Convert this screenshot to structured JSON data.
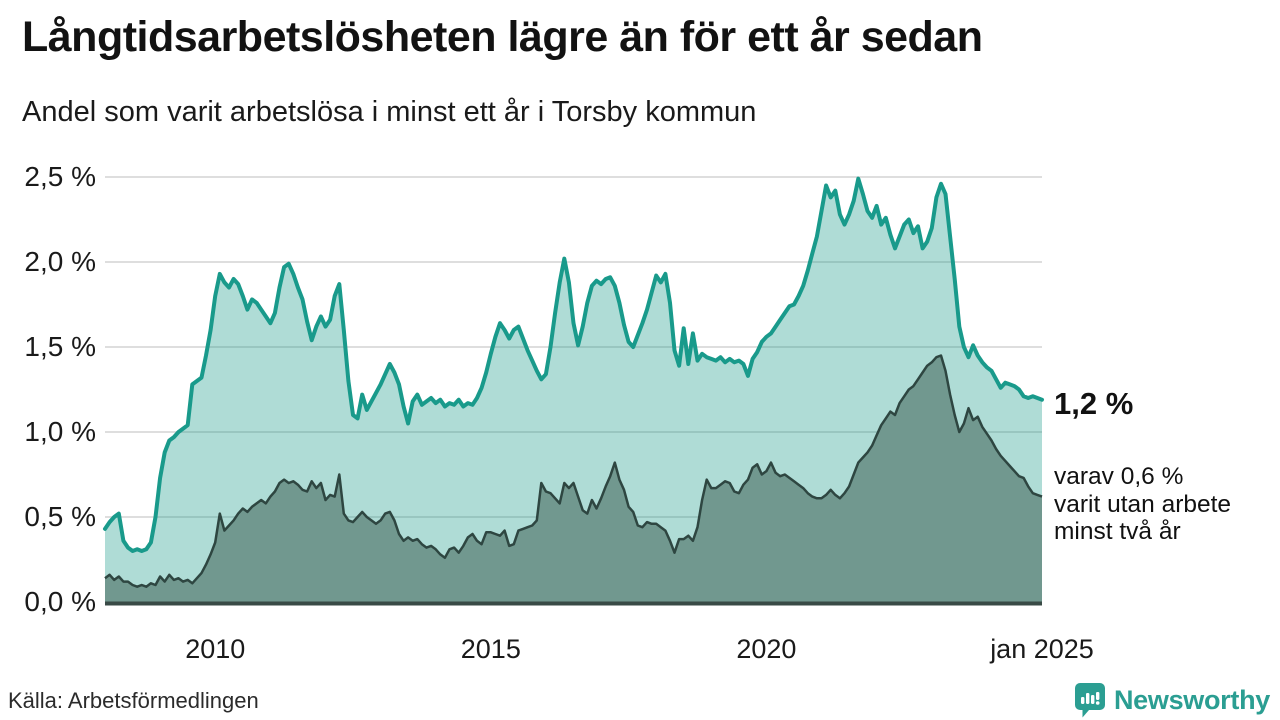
{
  "header": {
    "title": "Långtidsarbetslösheten lägre än för ett år sedan",
    "subtitle": "Andel som varit arbetslösa i minst ett år i Torsby kommun"
  },
  "annotations": {
    "latest_total": "1,2 %",
    "secondary_line1": "varav 0,6 %",
    "secondary_line2": "varit utan arbete",
    "secondary_line3": "minst två år"
  },
  "footer": {
    "source": "Källa: Arbetsförmedlingen",
    "brand": "Newsworthy"
  },
  "colors": {
    "long_term_line": "#199a8b",
    "long_term_fill": "#1a9a8a",
    "very_long_term_line": "#2e4641",
    "very_long_term_fill": "#71988f",
    "gridline": "#dedede",
    "baseline": "#394a46",
    "brand_teal": "#2b9e92"
  },
  "chart_data": {
    "type": "area",
    "title": "Långtidsarbetslösheten lägre än för ett år sedan",
    "subtitle": "Andel som varit arbetslösa i minst ett år i Torsby kommun",
    "unit": "percent",
    "frequency": "monthly",
    "x_start": "2008-01",
    "x_end": "2025-01",
    "ylim": [
      0,
      2.5
    ],
    "grid": true,
    "y_ticks": [
      {
        "label": "2,5 %",
        "value": 2.5
      },
      {
        "label": "2,0 %",
        "value": 2.0
      },
      {
        "label": "1,5 %",
        "value": 1.5
      },
      {
        "label": "1,0 %",
        "value": 1.0
      },
      {
        "label": "0,5 %",
        "value": 0.5
      },
      {
        "label": "0,0 %",
        "value": 0.0
      }
    ],
    "x_ticks": [
      {
        "label": "2010",
        "month_index": 24
      },
      {
        "label": "2015",
        "month_index": 84
      },
      {
        "label": "2020",
        "month_index": 144
      },
      {
        "label": "jan 2025",
        "month_index": 204
      }
    ],
    "series": [
      {
        "name": "Andel som varit arbetslösa i minst ett år",
        "latest_label": "1,2 %",
        "values": [
          0.43,
          0.47,
          0.5,
          0.52,
          0.36,
          0.32,
          0.3,
          0.31,
          0.3,
          0.31,
          0.35,
          0.5,
          0.73,
          0.88,
          0.95,
          0.97,
          1.0,
          1.02,
          1.04,
          1.28,
          1.3,
          1.32,
          1.45,
          1.6,
          1.8,
          1.93,
          1.88,
          1.85,
          1.9,
          1.87,
          1.8,
          1.72,
          1.78,
          1.76,
          1.72,
          1.68,
          1.64,
          1.7,
          1.85,
          1.97,
          1.99,
          1.93,
          1.85,
          1.78,
          1.65,
          1.54,
          1.62,
          1.68,
          1.62,
          1.66,
          1.8,
          1.87,
          1.6,
          1.3,
          1.1,
          1.08,
          1.22,
          1.13,
          1.18,
          1.23,
          1.28,
          1.34,
          1.4,
          1.35,
          1.28,
          1.15,
          1.05,
          1.18,
          1.22,
          1.16,
          1.18,
          1.2,
          1.17,
          1.19,
          1.15,
          1.17,
          1.16,
          1.19,
          1.15,
          1.17,
          1.16,
          1.2,
          1.26,
          1.35,
          1.46,
          1.56,
          1.64,
          1.6,
          1.55,
          1.6,
          1.62,
          1.55,
          1.48,
          1.42,
          1.36,
          1.31,
          1.34,
          1.5,
          1.7,
          1.88,
          2.02,
          1.88,
          1.64,
          1.51,
          1.62,
          1.76,
          1.86,
          1.89,
          1.87,
          1.9,
          1.91,
          1.86,
          1.76,
          1.63,
          1.53,
          1.5,
          1.57,
          1.64,
          1.72,
          1.82,
          1.92,
          1.88,
          1.93,
          1.76,
          1.48,
          1.39,
          1.61,
          1.4,
          1.58,
          1.42,
          1.46,
          1.44,
          1.43,
          1.42,
          1.44,
          1.41,
          1.43,
          1.41,
          1.42,
          1.4,
          1.33,
          1.43,
          1.47,
          1.53,
          1.56,
          1.58,
          1.62,
          1.66,
          1.7,
          1.74,
          1.75,
          1.8,
          1.86,
          1.95,
          2.05,
          2.15,
          2.3,
          2.45,
          2.38,
          2.42,
          2.28,
          2.22,
          2.28,
          2.36,
          2.49,
          2.4,
          2.3,
          2.26,
          2.33,
          2.22,
          2.26,
          2.16,
          2.08,
          2.15,
          2.22,
          2.25,
          2.17,
          2.21,
          2.08,
          2.12,
          2.2,
          2.38,
          2.46,
          2.4,
          2.15,
          1.9,
          1.62,
          1.5,
          1.44,
          1.51,
          1.45,
          1.41,
          1.38,
          1.36,
          1.31,
          1.26,
          1.29,
          1.28,
          1.27,
          1.25,
          1.21,
          1.2,
          1.21,
          1.2,
          1.19
        ]
      },
      {
        "name": "varav utan arbete minst två år",
        "latest_label": "0,6 %",
        "values": [
          0.14,
          0.16,
          0.13,
          0.15,
          0.12,
          0.12,
          0.1,
          0.09,
          0.1,
          0.09,
          0.11,
          0.1,
          0.15,
          0.12,
          0.16,
          0.13,
          0.14,
          0.12,
          0.13,
          0.11,
          0.14,
          0.17,
          0.22,
          0.28,
          0.35,
          0.52,
          0.42,
          0.45,
          0.48,
          0.52,
          0.55,
          0.53,
          0.56,
          0.58,
          0.6,
          0.58,
          0.62,
          0.65,
          0.7,
          0.72,
          0.7,
          0.71,
          0.69,
          0.66,
          0.65,
          0.71,
          0.67,
          0.7,
          0.6,
          0.63,
          0.62,
          0.75,
          0.52,
          0.48,
          0.47,
          0.5,
          0.53,
          0.5,
          0.48,
          0.46,
          0.48,
          0.52,
          0.53,
          0.48,
          0.4,
          0.36,
          0.38,
          0.36,
          0.37,
          0.34,
          0.32,
          0.33,
          0.31,
          0.28,
          0.26,
          0.31,
          0.32,
          0.29,
          0.33,
          0.38,
          0.4,
          0.36,
          0.34,
          0.41,
          0.41,
          0.4,
          0.39,
          0.42,
          0.33,
          0.34,
          0.42,
          0.43,
          0.44,
          0.45,
          0.48,
          0.7,
          0.65,
          0.64,
          0.61,
          0.58,
          0.7,
          0.67,
          0.7,
          0.62,
          0.54,
          0.52,
          0.6,
          0.55,
          0.61,
          0.68,
          0.74,
          0.82,
          0.72,
          0.66,
          0.56,
          0.53,
          0.45,
          0.44,
          0.47,
          0.46,
          0.46,
          0.44,
          0.42,
          0.36,
          0.29,
          0.37,
          0.37,
          0.39,
          0.36,
          0.44,
          0.6,
          0.72,
          0.67,
          0.67,
          0.69,
          0.71,
          0.7,
          0.65,
          0.64,
          0.69,
          0.72,
          0.79,
          0.81,
          0.75,
          0.77,
          0.82,
          0.76,
          0.74,
          0.75,
          0.73,
          0.71,
          0.69,
          0.67,
          0.64,
          0.62,
          0.61,
          0.61,
          0.63,
          0.66,
          0.63,
          0.61,
          0.64,
          0.68,
          0.75,
          0.82,
          0.85,
          0.88,
          0.92,
          0.98,
          1.04,
          1.08,
          1.12,
          1.1,
          1.17,
          1.21,
          1.25,
          1.27,
          1.31,
          1.35,
          1.39,
          1.41,
          1.44,
          1.45,
          1.36,
          1.22,
          1.1,
          1.0,
          1.05,
          1.14,
          1.07,
          1.09,
          1.03,
          0.99,
          0.95,
          0.9,
          0.86,
          0.83,
          0.8,
          0.77,
          0.74,
          0.73,
          0.68,
          0.64,
          0.63,
          0.62
        ]
      }
    ]
  }
}
